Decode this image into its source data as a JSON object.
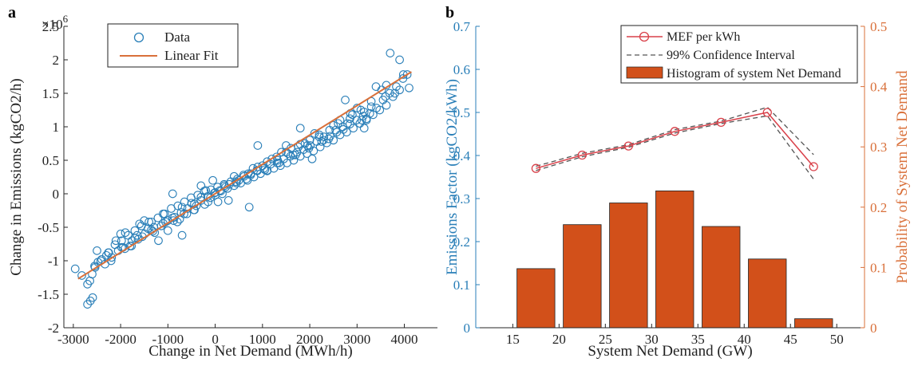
{
  "chart_data": [
    {
      "panel_label": "a",
      "type": "scatter",
      "xlabel": "Change in Net Demand (MWh/h)",
      "ylabel": "Change in Emissions (kgCO2/h)",
      "y_exponent_label": "×10",
      "y_exponent": "6",
      "xlim": [
        -3200,
        4700
      ],
      "ylim": [
        -2.0,
        2.5
      ],
      "xticks": [
        -3000,
        -2000,
        -1000,
        0,
        1000,
        2000,
        3000,
        4000
      ],
      "yticks": [
        -2,
        -1.5,
        -1,
        -0.5,
        0,
        0.5,
        1,
        1.5,
        2,
        2.5
      ],
      "legend_position": "top-left",
      "colors": {
        "data": "#2a7fb8",
        "fit": "#d9703a"
      },
      "series": [
        {
          "name": "Data",
          "marker": "circle",
          "x": [
            -2960,
            -2820,
            -2700,
            -2640,
            -2590,
            -2540,
            -2480,
            -2400,
            -2330,
            -2260,
            -2190,
            -2120,
            -2050,
            -1980,
            -1910,
            -1840,
            -1770,
            -1700,
            -1630,
            -1560,
            -1490,
            -1420,
            -1350,
            -1280,
            -1210,
            -1140,
            -1070,
            -1000,
            -930,
            -860,
            -790,
            -720,
            -650,
            -580,
            -510,
            -440,
            -370,
            -300,
            -230,
            -160,
            -90,
            -20,
            50,
            120,
            190,
            260,
            330,
            400,
            470,
            540,
            610,
            680,
            750,
            820,
            890,
            960,
            1030,
            1100,
            1170,
            1240,
            1310,
            1380,
            1450,
            1520,
            1590,
            1660,
            1730,
            1800,
            1870,
            1940,
            2010,
            2080,
            2150,
            2220,
            2290,
            2360,
            2430,
            2500,
            2570,
            2640,
            2710,
            2780,
            2850,
            2920,
            2990,
            3060,
            3130,
            3200,
            3270,
            3340,
            3410,
            3480,
            3550,
            3620,
            3690,
            3760,
            3830,
            3900,
            3970,
            4060,
            -2500,
            -2300,
            -2100,
            -1900,
            -1700,
            -1500,
            -1300,
            -1100,
            -900,
            -700,
            -500,
            -300,
            -100,
            100,
            300,
            500,
            700,
            900,
            1100,
            1300,
            1500,
            1700,
            1900,
            2100,
            2300,
            2500,
            2700,
            2900,
            3100,
            3300,
            -2650,
            -2420,
            -2200,
            -1980,
            -1760,
            -1540,
            -1320,
            -1100,
            -880,
            -660,
            -440,
            -220,
            0,
            220,
            440,
            660,
            880,
            1100,
            1320,
            1540,
            1760,
            1980,
            2200,
            2420,
            2640,
            2860,
            3080,
            3300,
            3520,
            -2550,
            -2250,
            -1950,
            -1650,
            -1350,
            -1050,
            -750,
            -450,
            -150,
            150,
            450,
            750,
            1050,
            1350,
            1650,
            1950,
            2250,
            2550,
            2850,
            3150,
            -1200,
            -800,
            -400,
            0,
            400,
            800,
            1200,
            1600,
            2000,
            2400,
            2800,
            3200,
            3600,
            3800,
            4100,
            -2700,
            -2600,
            -1600,
            -1000,
            -600,
            -200,
            200,
            600,
            1000,
            1400,
            1800,
            2200,
            2600,
            3000,
            3400,
            -50,
            60,
            -300,
            280,
            -700,
            720,
            -1400,
            1500,
            -2000,
            2050,
            900,
            -900,
            1800,
            -1800,
            3700,
            3900,
            3980,
            3620,
            2750,
            3150
          ],
          "y": [
            -1.12,
            -1.22,
            -1.65,
            -1.6,
            -1.55,
            -1.1,
            -1.02,
            -0.98,
            -1.05,
            -0.88,
            -0.95,
            -0.76,
            -0.85,
            -0.7,
            -0.82,
            -0.62,
            -0.78,
            -0.55,
            -0.68,
            -0.48,
            -0.6,
            -0.52,
            -0.42,
            -0.58,
            -0.36,
            -0.48,
            -0.3,
            -0.4,
            -0.22,
            -0.35,
            -0.18,
            -0.28,
            -0.12,
            -0.22,
            -0.06,
            -0.15,
            -0.02,
            -0.1,
            0.04,
            -0.04,
            0.06,
            0.01,
            0.1,
            0.04,
            0.14,
            0.08,
            0.18,
            0.12,
            0.22,
            0.16,
            0.26,
            0.2,
            0.3,
            0.25,
            0.34,
            0.3,
            0.38,
            0.34,
            0.44,
            0.38,
            0.46,
            0.42,
            0.52,
            0.46,
            0.56,
            0.5,
            0.62,
            0.56,
            0.66,
            0.6,
            0.72,
            0.64,
            0.78,
            0.7,
            0.8,
            0.76,
            0.86,
            0.8,
            0.92,
            0.88,
            0.96,
            0.92,
            1.04,
            0.98,
            1.1,
            1.05,
            1.16,
            1.12,
            1.2,
            1.18,
            1.28,
            1.25,
            1.4,
            1.32,
            1.5,
            1.45,
            1.6,
            1.55,
            1.72,
            1.78,
            -0.85,
            -0.92,
            -0.7,
            -0.58,
            -0.66,
            -0.4,
            -0.5,
            -0.3,
            -0.36,
            -0.2,
            -0.14,
            -0.05,
            -0.06,
            0.05,
            0.14,
            0.2,
            0.3,
            0.4,
            0.35,
            0.55,
            0.62,
            0.58,
            0.75,
            0.9,
            0.85,
            1.02,
            1.0,
            1.18,
            1.1,
            1.3,
            -1.3,
            -1.0,
            -1.0,
            -0.8,
            -0.7,
            -0.64,
            -0.56,
            -0.44,
            -0.4,
            -0.3,
            -0.24,
            -0.16,
            -0.02,
            0.1,
            0.18,
            0.22,
            0.35,
            0.48,
            0.5,
            0.6,
            0.7,
            0.68,
            0.85,
            0.95,
            1.1,
            1.2,
            1.25,
            1.38,
            1.55,
            -1.08,
            -0.88,
            -0.8,
            -0.62,
            -0.54,
            -0.42,
            -0.38,
            -0.24,
            -0.12,
            0.0,
            0.16,
            0.28,
            0.36,
            0.46,
            0.58,
            0.72,
            0.78,
            0.95,
            1.12,
            1.22,
            -0.7,
            -0.42,
            -0.18,
            0.02,
            0.26,
            0.38,
            0.52,
            0.68,
            0.8,
            0.82,
            1.05,
            1.1,
            1.45,
            1.5,
            1.58,
            -1.35,
            -1.2,
            -0.45,
            -0.55,
            -0.3,
            0.05,
            0.12,
            0.28,
            0.42,
            0.62,
            0.74,
            0.88,
            1.05,
            1.28,
            1.6,
            0.2,
            -0.12,
            0.12,
            -0.1,
            -0.62,
            -0.2,
            -0.42,
            0.72,
            -0.6,
            0.52,
            0.72,
            0.0,
            0.98,
            -0.78,
            2.1,
            2.0,
            1.78,
            1.62,
            1.4,
            0.98
          ]
        },
        {
          "name": "Linear Fit",
          "type": "line",
          "x": [
            -2900,
            4150
          ],
          "y": [
            -1.27,
            1.82
          ]
        }
      ]
    },
    {
      "panel_label": "b",
      "type": "bar+line",
      "xlabel": "System Net Demand (GW)",
      "ylabel_left": "Emissions Factor (kgCO2/kWh)",
      "ylabel_right": "Probability of System Net Demand",
      "xlim": [
        11,
        53
      ],
      "ylim_left": [
        0,
        0.7
      ],
      "ylim_right": [
        0,
        0.5
      ],
      "xticks": [
        15,
        20,
        25,
        30,
        35,
        40,
        45,
        50
      ],
      "yticks_left": [
        0,
        0.1,
        0.2,
        0.3,
        0.4,
        0.5,
        0.6,
        0.7
      ],
      "yticks_right": [
        0,
        0.1,
        0.2,
        0.3,
        0.4,
        0.5
      ],
      "legend_position": "top-right",
      "colors": {
        "left_axis": "#2a7fb8",
        "right_axis": "#d9703a",
        "bars": "#d2501a",
        "mef": "#d9414a",
        "ci": "#555555"
      },
      "series": [
        {
          "name": "MEF per kWh",
          "axis": "left",
          "marker": "circle",
          "x": [
            17.5,
            22.5,
            27.5,
            32.5,
            37.5,
            42.5,
            47.5
          ],
          "y": [
            0.37,
            0.401,
            0.422,
            0.456,
            0.477,
            0.5,
            0.374
          ]
        },
        {
          "name": "99% Confidence Interval",
          "axis": "left",
          "style": "dashed",
          "x": [
            17.5,
            22.5,
            27.5,
            32.5,
            37.5,
            42.5,
            47.5
          ],
          "lower": [
            0.365,
            0.397,
            0.419,
            0.452,
            0.474,
            0.492,
            0.345
          ],
          "upper": [
            0.375,
            0.405,
            0.425,
            0.46,
            0.48,
            0.512,
            0.402
          ]
        },
        {
          "name": "Histogram of system Net Demand",
          "axis": "right",
          "type": "bar",
          "x": [
            17.5,
            22.5,
            27.5,
            32.5,
            37.5,
            42.5,
            47.5
          ],
          "values": [
            0.098,
            0.171,
            0.207,
            0.227,
            0.168,
            0.114,
            0.015
          ]
        }
      ]
    }
  ]
}
